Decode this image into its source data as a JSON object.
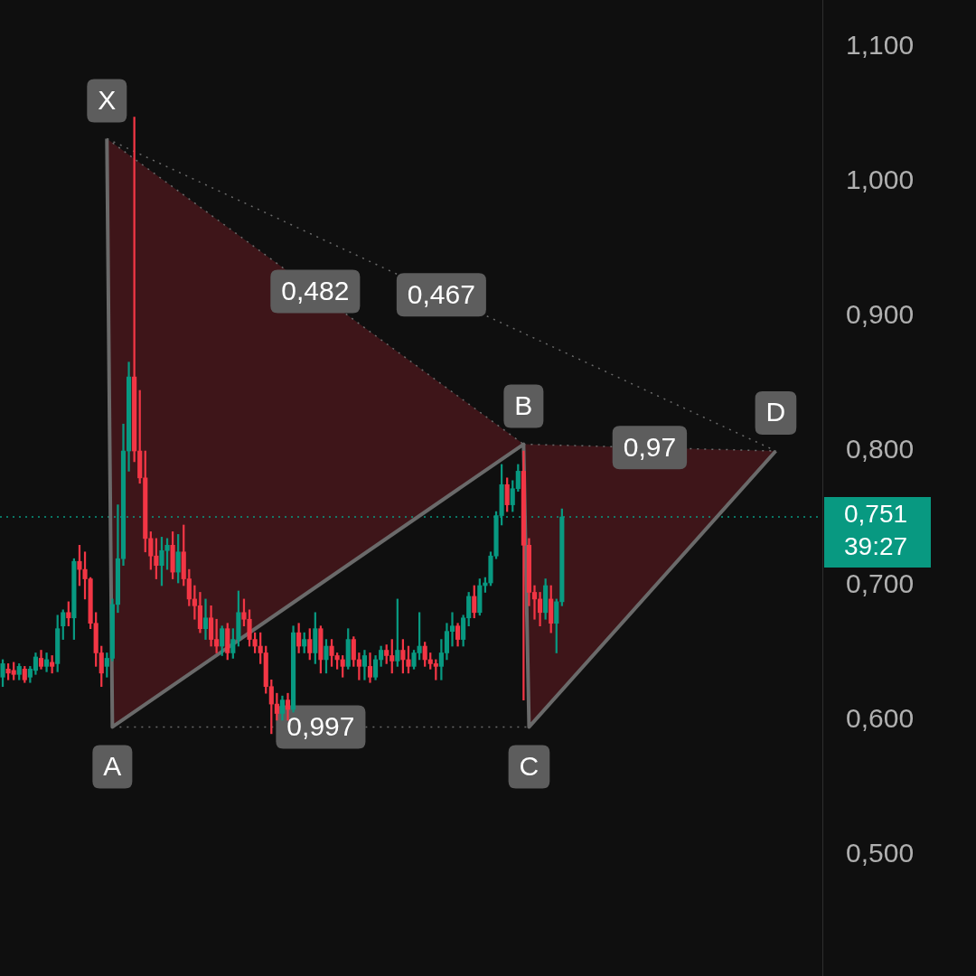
{
  "chart_data": {
    "type": "candlestick",
    "ylim": [
      0.41,
      1.135
    ],
    "yticks": [
      {
        "value": 0.5,
        "label": "0,500"
      },
      {
        "value": 0.6,
        "label": "0,600"
      },
      {
        "value": 0.7,
        "label": "0,700"
      },
      {
        "value": 0.8,
        "label": "0,800"
      },
      {
        "value": 0.9,
        "label": "0,900"
      },
      {
        "value": 1.0,
        "label": "1,000"
      },
      {
        "value": 1.1,
        "label": "1,100"
      }
    ],
    "tick_labels": "y",
    "categories": [
      null,
      null,
      null,
      null,
      null,
      null,
      null,
      null,
      null,
      null,
      null,
      null,
      null,
      null,
      null,
      null,
      null,
      null,
      null,
      null,
      null,
      null,
      null,
      null,
      null,
      null,
      null,
      null,
      null,
      null,
      null,
      null,
      null,
      null,
      null,
      null,
      null,
      null,
      null,
      null,
      null,
      null,
      null,
      null,
      null,
      null,
      null,
      null,
      null,
      null,
      null,
      null,
      null,
      null,
      null,
      null,
      null,
      null,
      null,
      null,
      null,
      null,
      null,
      null,
      null,
      null,
      null,
      null,
      null,
      null,
      null,
      null,
      null,
      null,
      null,
      null,
      null,
      null,
      null,
      null,
      null,
      null,
      null,
      null,
      null,
      null,
      null,
      null,
      null,
      null,
      null,
      null,
      null,
      null,
      null,
      null,
      null,
      null,
      null,
      null,
      null,
      null,
      null,
      null,
      null,
      null,
      null,
      null,
      null,
      null,
      null,
      null,
      null,
      null,
      null,
      null,
      null,
      null,
      null,
      null,
      null,
      null,
      null,
      null,
      null,
      null,
      null,
      null,
      null,
      null,
      null,
      null,
      null,
      null,
      null,
      null,
      null,
      null,
      null,
      null,
      null,
      null,
      null,
      null,
      null,
      null,
      null,
      null,
      null,
      null
    ],
    "series": [
      {
        "ohlc": [
          [
            0.632,
            0.645,
            0.625,
            0.642
          ],
          [
            0.638,
            0.642,
            0.63,
            0.635
          ],
          [
            0.637,
            0.643,
            0.63,
            0.634
          ],
          [
            0.634,
            0.642,
            0.63,
            0.64
          ],
          [
            0.638,
            0.64,
            0.628,
            0.63
          ],
          [
            0.632,
            0.64,
            0.628,
            0.638
          ],
          [
            0.637,
            0.65,
            0.634,
            0.647
          ],
          [
            0.646,
            0.652,
            0.638,
            0.64
          ],
          [
            0.64,
            0.65,
            0.636,
            0.645
          ],
          [
            0.643,
            0.648,
            0.635,
            0.64
          ],
          [
            0.642,
            0.678,
            0.636,
            0.668
          ],
          [
            0.67,
            0.682,
            0.66,
            0.68
          ],
          [
            0.68,
            0.688,
            0.67,
            0.676
          ],
          [
            0.676,
            0.72,
            0.66,
            0.718
          ],
          [
            0.718,
            0.73,
            0.7,
            0.712
          ],
          [
            0.712,
            0.725,
            0.69,
            0.705
          ],
          [
            0.705,
            0.706,
            0.668,
            0.672
          ],
          [
            0.672,
            0.68,
            0.64,
            0.65
          ],
          [
            0.65,
            0.655,
            0.625,
            0.635
          ],
          [
            0.64,
            0.65,
            0.632,
            0.646
          ],
          [
            0.646,
            0.69,
            0.644,
            0.686
          ],
          [
            0.686,
            0.76,
            0.68,
            0.72
          ],
          [
            0.72,
            0.82,
            0.715,
            0.8
          ],
          [
            0.8,
            0.866,
            0.785,
            0.855
          ],
          [
            0.855,
            1.048,
            0.792,
            0.8
          ],
          [
            0.8,
            0.845,
            0.776,
            0.78
          ],
          [
            0.78,
            0.8,
            0.725,
            0.735
          ],
          [
            0.735,
            0.74,
            0.712,
            0.722
          ],
          [
            0.722,
            0.735,
            0.705,
            0.715
          ],
          [
            0.715,
            0.736,
            0.7,
            0.726
          ],
          [
            0.726,
            0.735,
            0.712,
            0.73
          ],
          [
            0.73,
            0.74,
            0.705,
            0.71
          ],
          [
            0.71,
            0.738,
            0.702,
            0.725
          ],
          [
            0.725,
            0.745,
            0.7,
            0.705
          ],
          [
            0.705,
            0.712,
            0.685,
            0.69
          ],
          [
            0.69,
            0.7,
            0.675,
            0.685
          ],
          [
            0.685,
            0.695,
            0.665,
            0.668
          ],
          [
            0.668,
            0.69,
            0.66,
            0.676
          ],
          [
            0.676,
            0.685,
            0.655,
            0.66
          ],
          [
            0.66,
            0.675,
            0.65,
            0.655
          ],
          [
            0.655,
            0.67,
            0.648,
            0.668
          ],
          [
            0.668,
            0.672,
            0.645,
            0.65
          ],
          [
            0.65,
            0.668,
            0.646,
            0.66
          ],
          [
            0.66,
            0.696,
            0.655,
            0.68
          ],
          [
            0.68,
            0.69,
            0.67,
            0.675
          ],
          [
            0.675,
            0.682,
            0.655,
            0.66
          ],
          [
            0.66,
            0.665,
            0.65,
            0.655
          ],
          [
            0.655,
            0.665,
            0.642,
            0.65
          ],
          [
            0.65,
            0.655,
            0.62,
            0.625
          ],
          [
            0.625,
            0.63,
            0.59,
            0.612
          ],
          [
            0.612,
            0.62,
            0.6,
            0.605
          ],
          [
            0.605,
            0.618,
            0.6,
            0.615
          ],
          [
            0.615,
            0.62,
            0.6,
            0.608
          ],
          [
            0.608,
            0.67,
            0.606,
            0.665
          ],
          [
            0.665,
            0.672,
            0.65,
            0.655
          ],
          [
            0.655,
            0.665,
            0.65,
            0.66
          ],
          [
            0.66,
            0.668,
            0.645,
            0.65
          ],
          [
            0.65,
            0.68,
            0.642,
            0.668
          ],
          [
            0.668,
            0.67,
            0.635,
            0.645
          ],
          [
            0.645,
            0.66,
            0.635,
            0.655
          ],
          [
            0.655,
            0.66,
            0.64,
            0.648
          ],
          [
            0.648,
            0.65,
            0.638,
            0.645
          ],
          [
            0.645,
            0.648,
            0.632,
            0.64
          ],
          [
            0.64,
            0.668,
            0.638,
            0.66
          ],
          [
            0.66,
            0.662,
            0.64,
            0.645
          ],
          [
            0.645,
            0.65,
            0.63,
            0.64
          ],
          [
            0.64,
            0.652,
            0.63,
            0.648
          ],
          [
            0.64,
            0.65,
            0.628,
            0.632
          ],
          [
            0.632,
            0.648,
            0.63,
            0.645
          ],
          [
            0.645,
            0.655,
            0.64,
            0.652
          ],
          [
            0.652,
            0.656,
            0.642,
            0.648
          ],
          [
            0.648,
            0.66,
            0.635,
            0.644
          ],
          [
            0.644,
            0.69,
            0.64,
            0.652
          ],
          [
            0.652,
            0.66,
            0.635,
            0.645
          ],
          [
            0.645,
            0.655,
            0.635,
            0.64
          ],
          [
            0.64,
            0.652,
            0.638,
            0.65
          ],
          [
            0.65,
            0.68,
            0.645,
            0.655
          ],
          [
            0.655,
            0.658,
            0.64,
            0.645
          ],
          [
            0.645,
            0.65,
            0.638,
            0.642
          ],
          [
            0.642,
            0.645,
            0.63,
            0.64
          ],
          [
            0.64,
            0.66,
            0.63,
            0.65
          ],
          [
            0.65,
            0.672,
            0.645,
            0.666
          ],
          [
            0.666,
            0.68,
            0.655,
            0.67
          ],
          [
            0.67,
            0.672,
            0.655,
            0.66
          ],
          [
            0.66,
            0.678,
            0.655,
            0.676
          ],
          [
            0.676,
            0.695,
            0.67,
            0.692
          ],
          [
            0.692,
            0.7,
            0.676,
            0.68
          ],
          [
            0.68,
            0.705,
            0.678,
            0.7
          ],
          [
            0.7,
            0.706,
            0.695,
            0.702
          ],
          [
            0.702,
            0.725,
            0.7,
            0.722
          ],
          [
            0.722,
            0.755,
            0.72,
            0.752
          ],
          [
            0.752,
            0.79,
            0.745,
            0.775
          ],
          [
            0.775,
            0.78,
            0.755,
            0.76
          ],
          [
            0.76,
            0.778,
            0.755,
            0.772
          ],
          [
            0.772,
            0.79,
            0.77,
            0.785
          ],
          [
            0.785,
            0.8,
            0.615,
            0.73
          ],
          [
            0.73,
            0.735,
            0.685,
            0.695
          ],
          [
            0.695,
            0.7,
            0.675,
            0.69
          ],
          [
            0.69,
            0.695,
            0.67,
            0.68
          ],
          [
            0.68,
            0.705,
            0.675,
            0.7
          ],
          [
            0.69,
            0.7,
            0.665,
            0.672
          ],
          [
            0.672,
            0.69,
            0.65,
            0.688
          ],
          [
            0.688,
            0.757,
            0.685,
            0.751
          ],
          null,
          null,
          null,
          null,
          null,
          null,
          null,
          null,
          null,
          null,
          null,
          null,
          null,
          null,
          null,
          null,
          null,
          null,
          null,
          null,
          null,
          null,
          null,
          null,
          null,
          null,
          null,
          null,
          null,
          null,
          null,
          null,
          null,
          null,
          null,
          null,
          null,
          null,
          null,
          null,
          null,
          null,
          null,
          null,
          null,
          null,
          null
        ],
        "colors": [
          "#089981",
          "#f23645",
          "#f23645",
          "#089981",
          "#f23645",
          "#089981",
          "#089981",
          "#f23645",
          "#089981",
          "#f23645",
          "#089981",
          "#089981",
          "#f23645",
          "#089981",
          "#f23645",
          "#f23645",
          "#f23645",
          "#f23645",
          "#f23645",
          "#089981",
          "#089981",
          "#089981",
          "#089981",
          "#089981",
          "#f23645",
          "#f23645",
          "#f23645",
          "#f23645",
          "#f23645",
          "#089981",
          "#089981",
          "#f23645",
          "#089981",
          "#f23645",
          "#f23645",
          "#f23645",
          "#f23645",
          "#089981",
          "#f23645",
          "#f23645",
          "#089981",
          "#f23645",
          "#089981",
          "#089981",
          "#f23645",
          "#f23645",
          "#f23645",
          "#f23645",
          "#f23645",
          "#f23645",
          "#f23645",
          "#089981",
          "#f23645",
          "#089981",
          "#f23645",
          "#089981",
          "#f23645",
          "#089981",
          "#f23645",
          "#089981",
          "#f23645",
          "#f23645",
          "#f23645",
          "#089981",
          "#f23645",
          "#f23645",
          "#089981",
          "#f23645",
          "#089981",
          "#089981",
          "#f23645",
          "#f23645",
          "#089981",
          "#f23645",
          "#f23645",
          "#089981",
          "#089981",
          "#f23645",
          "#f23645",
          "#f23645",
          "#089981",
          "#089981",
          "#089981",
          "#f23645",
          "#089981",
          "#089981",
          "#f23645",
          "#089981",
          "#089981",
          "#089981",
          "#089981",
          "#089981",
          "#f23645",
          "#089981",
          "#089981",
          "#f23645",
          "#f23645",
          "#f23645",
          "#f23645",
          "#089981",
          "#f23645",
          "#089981",
          "#089981",
          null,
          null,
          null,
          null,
          null,
          null,
          null,
          null,
          null,
          null,
          null,
          null,
          null,
          null,
          null,
          null,
          null,
          null,
          null,
          null,
          null,
          null,
          null,
          null,
          null,
          null,
          null,
          null,
          null,
          null,
          null,
          null,
          null,
          null,
          null,
          null,
          null,
          null,
          null,
          null,
          null,
          null,
          null,
          null,
          null,
          null,
          null
        ]
      },
      {
        "type": "line",
        "color": "#6a6a6a",
        "values": [
          null,
          null,
          null,
          null,
          null,
          null,
          null,
          null,
          null,
          null,
          null,
          null,
          null,
          null,
          null,
          null,
          null,
          null,
          null,
          1.032,
          0.595,
          null,
          null,
          null,
          null,
          null,
          null,
          null,
          null,
          null,
          null,
          null,
          null,
          null,
          null,
          null,
          null,
          null,
          null,
          null,
          null,
          null,
          null,
          null,
          null,
          null,
          null,
          null,
          null,
          null,
          null,
          null,
          null,
          null,
          null,
          null,
          null,
          null,
          null,
          null,
          null,
          null,
          null,
          null,
          null,
          null,
          null,
          null,
          null,
          null,
          null,
          null,
          null,
          null,
          null,
          null,
          null,
          null,
          null,
          null,
          null,
          null,
          null,
          null,
          null,
          null,
          null,
          null,
          null,
          null,
          null,
          null,
          null,
          null,
          null,
          0.805,
          0.595,
          null,
          null,
          null,
          null,
          null,
          null,
          null,
          null,
          null,
          null,
          null,
          null,
          null,
          null,
          null,
          null,
          null,
          null,
          null,
          null,
          null,
          null,
          null,
          null,
          null,
          null,
          null,
          null,
          null,
          null,
          null,
          null,
          null,
          null,
          null,
          null,
          null,
          null,
          null,
          null,
          null,
          null,
          null,
          null,
          0.8,
          null,
          null,
          null,
          null,
          null,
          null,
          null,
          null
        ],
        "value_labels": [
          null,
          null,
          null,
          null,
          null,
          null,
          null,
          null,
          null,
          null,
          null,
          null,
          null,
          null,
          null,
          null,
          null,
          null,
          null,
          "X",
          "A",
          null,
          null,
          null,
          null,
          null,
          null,
          null,
          null,
          null,
          null,
          null,
          null,
          null,
          null,
          null,
          null,
          null,
          null,
          null,
          null,
          null,
          null,
          null,
          null,
          null,
          null,
          null,
          null,
          null,
          null,
          null,
          null,
          null,
          null,
          null,
          null,
          null,
          null,
          null,
          null,
          null,
          null,
          null,
          null,
          null,
          null,
          null,
          null,
          null,
          null,
          null,
          null,
          null,
          null,
          null,
          null,
          null,
          null,
          null,
          null,
          null,
          null,
          null,
          null,
          null,
          null,
          null,
          null,
          null,
          null,
          null,
          null,
          null,
          null,
          "B",
          "C",
          null,
          null,
          null,
          null,
          null,
          null,
          null,
          null,
          null,
          null,
          null,
          null,
          null,
          null,
          null,
          null,
          null,
          null,
          null,
          null,
          null,
          null,
          null,
          null,
          null,
          null,
          null,
          null,
          null,
          null,
          null,
          null,
          null,
          null,
          null,
          null,
          null,
          null,
          null,
          null,
          null,
          null,
          null,
          null,
          "D",
          null,
          null,
          null,
          null,
          null,
          null,
          null,
          null
        ]
      }
    ],
    "ref_lines": [
      {
        "axis": "y",
        "value": 0.751,
        "label": "0,751",
        "color": "#089981",
        "line_style": "dotted"
      }
    ],
    "annotations": [
      "0,482",
      "0,997",
      "0,97",
      "0,467",
      "39:27"
    ]
  }
}
